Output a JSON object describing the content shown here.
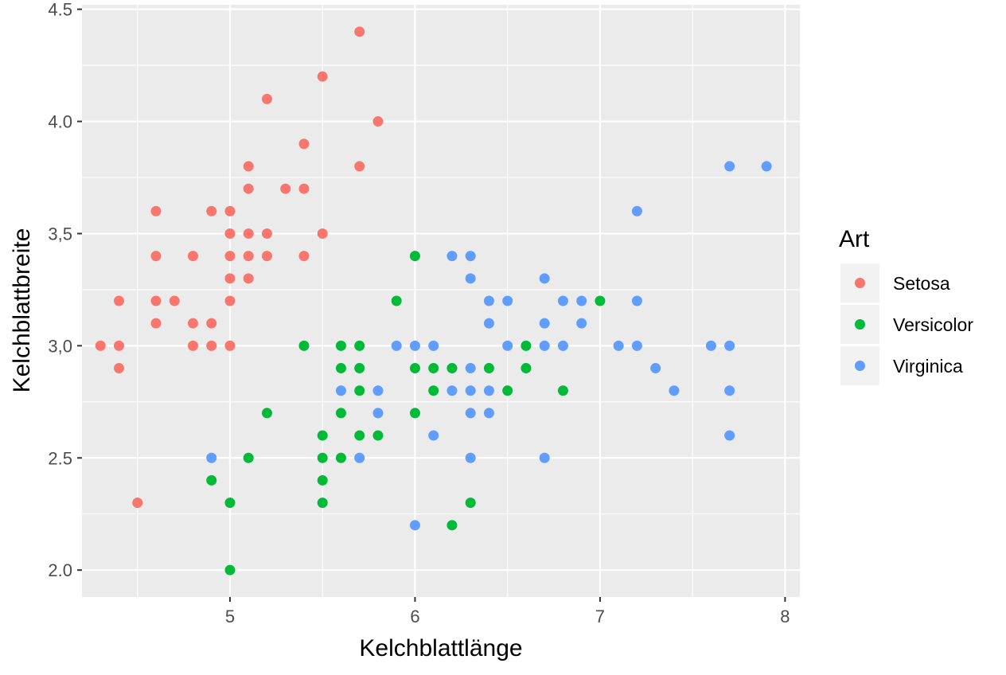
{
  "chart_data": {
    "type": "scatter",
    "title": "",
    "xlabel": "Kelchblattlänge",
    "ylabel": "Kelchblattbreite",
    "xlim": [
      4.2,
      8.08
    ],
    "ylim": [
      1.88,
      4.52
    ],
    "x_ticks": [
      5,
      6,
      7,
      8
    ],
    "x_tick_labels": [
      "5",
      "6",
      "7",
      "8"
    ],
    "y_ticks": [
      2.0,
      2.5,
      3.0,
      3.5,
      4.0,
      4.5
    ],
    "y_tick_labels": [
      "2.0",
      "2.5",
      "3,0",
      "3,5",
      "4.0",
      "4.5"
    ],
    "grid": true,
    "legend": {
      "title": "Art",
      "placement": "right"
    },
    "series": [
      {
        "name": "Setosa",
        "color": "#F8766D",
        "points": [
          [
            4.3,
            3.0
          ],
          [
            4.4,
            3.2
          ],
          [
            4.4,
            3.0
          ],
          [
            4.4,
            2.9
          ],
          [
            4.5,
            2.3
          ],
          [
            4.6,
            3.6
          ],
          [
            4.6,
            3.4
          ],
          [
            4.6,
            3.2
          ],
          [
            4.6,
            3.1
          ],
          [
            4.7,
            3.2
          ],
          [
            4.8,
            3.4
          ],
          [
            4.8,
            3.1
          ],
          [
            4.8,
            3.0
          ],
          [
            4.9,
            3.6
          ],
          [
            4.9,
            3.1
          ],
          [
            4.9,
            3.0
          ],
          [
            5.0,
            3.6
          ],
          [
            5.0,
            3.5
          ],
          [
            5.0,
            3.4
          ],
          [
            5.0,
            3.3
          ],
          [
            5.0,
            3.2
          ],
          [
            5.0,
            3.0
          ],
          [
            5.1,
            3.8
          ],
          [
            5.1,
            3.7
          ],
          [
            5.1,
            3.5
          ],
          [
            5.1,
            3.4
          ],
          [
            5.1,
            3.3
          ],
          [
            5.2,
            4.1
          ],
          [
            5.2,
            3.5
          ],
          [
            5.2,
            3.4
          ],
          [
            5.3,
            3.7
          ],
          [
            5.4,
            3.9
          ],
          [
            5.4,
            3.7
          ],
          [
            5.4,
            3.4
          ],
          [
            5.5,
            4.2
          ],
          [
            5.5,
            3.5
          ],
          [
            5.7,
            4.4
          ],
          [
            5.7,
            3.8
          ],
          [
            5.8,
            4.0
          ]
        ]
      },
      {
        "name": "Versicolor",
        "color": "#00BA38",
        "points": [
          [
            4.9,
            2.4
          ],
          [
            5.0,
            2.3
          ],
          [
            5.0,
            2.0
          ],
          [
            5.1,
            2.5
          ],
          [
            5.2,
            2.7
          ],
          [
            5.4,
            3.0
          ],
          [
            5.5,
            2.6
          ],
          [
            5.5,
            2.5
          ],
          [
            5.5,
            2.4
          ],
          [
            5.5,
            2.3
          ],
          [
            5.6,
            3.0
          ],
          [
            5.6,
            2.9
          ],
          [
            5.6,
            2.7
          ],
          [
            5.6,
            2.5
          ],
          [
            5.7,
            3.0
          ],
          [
            5.7,
            2.9
          ],
          [
            5.7,
            2.8
          ],
          [
            5.7,
            2.6
          ],
          [
            5.8,
            2.6
          ],
          [
            5.9,
            3.2
          ],
          [
            6.0,
            3.4
          ],
          [
            6.0,
            2.9
          ],
          [
            6.0,
            2.7
          ],
          [
            6.1,
            2.9
          ],
          [
            6.1,
            2.8
          ],
          [
            6.2,
            2.9
          ],
          [
            6.2,
            2.2
          ],
          [
            6.3,
            2.3
          ],
          [
            6.4,
            2.9
          ],
          [
            6.5,
            2.8
          ],
          [
            6.6,
            3.0
          ],
          [
            6.6,
            2.9
          ],
          [
            6.8,
            2.8
          ],
          [
            7.0,
            3.2
          ]
        ]
      },
      {
        "name": "Virginica",
        "color": "#619CFF",
        "points": [
          [
            4.9,
            2.5
          ],
          [
            5.6,
            2.8
          ],
          [
            5.7,
            2.5
          ],
          [
            5.8,
            2.8
          ],
          [
            5.8,
            2.7
          ],
          [
            5.9,
            3.0
          ],
          [
            6.0,
            3.0
          ],
          [
            6.0,
            2.2
          ],
          [
            6.1,
            3.0
          ],
          [
            6.1,
            2.6
          ],
          [
            6.2,
            3.4
          ],
          [
            6.2,
            2.8
          ],
          [
            6.3,
            3.4
          ],
          [
            6.3,
            3.3
          ],
          [
            6.3,
            2.9
          ],
          [
            6.3,
            2.8
          ],
          [
            6.3,
            2.7
          ],
          [
            6.3,
            2.5
          ],
          [
            6.4,
            3.2
          ],
          [
            6.4,
            3.1
          ],
          [
            6.4,
            2.8
          ],
          [
            6.4,
            2.7
          ],
          [
            6.5,
            3.2
          ],
          [
            6.5,
            3.0
          ],
          [
            6.7,
            3.3
          ],
          [
            6.7,
            3.1
          ],
          [
            6.7,
            3.0
          ],
          [
            6.7,
            2.5
          ],
          [
            6.8,
            3.2
          ],
          [
            6.8,
            3.0
          ],
          [
            6.9,
            3.2
          ],
          [
            6.9,
            3.1
          ],
          [
            7.1,
            3.0
          ],
          [
            7.2,
            3.6
          ],
          [
            7.2,
            3.2
          ],
          [
            7.2,
            3.0
          ],
          [
            7.3,
            2.9
          ],
          [
            7.4,
            2.8
          ],
          [
            7.6,
            3.0
          ],
          [
            7.7,
            3.8
          ],
          [
            7.7,
            3.0
          ],
          [
            7.7,
            2.8
          ],
          [
            7.7,
            2.6
          ],
          [
            7.9,
            3.8
          ]
        ]
      }
    ]
  },
  "colors": {
    "panel_background": "#EBEBEB",
    "grid": "#FFFFFF",
    "tick_text": "#4D4D4D",
    "axis_text": "#000000"
  }
}
